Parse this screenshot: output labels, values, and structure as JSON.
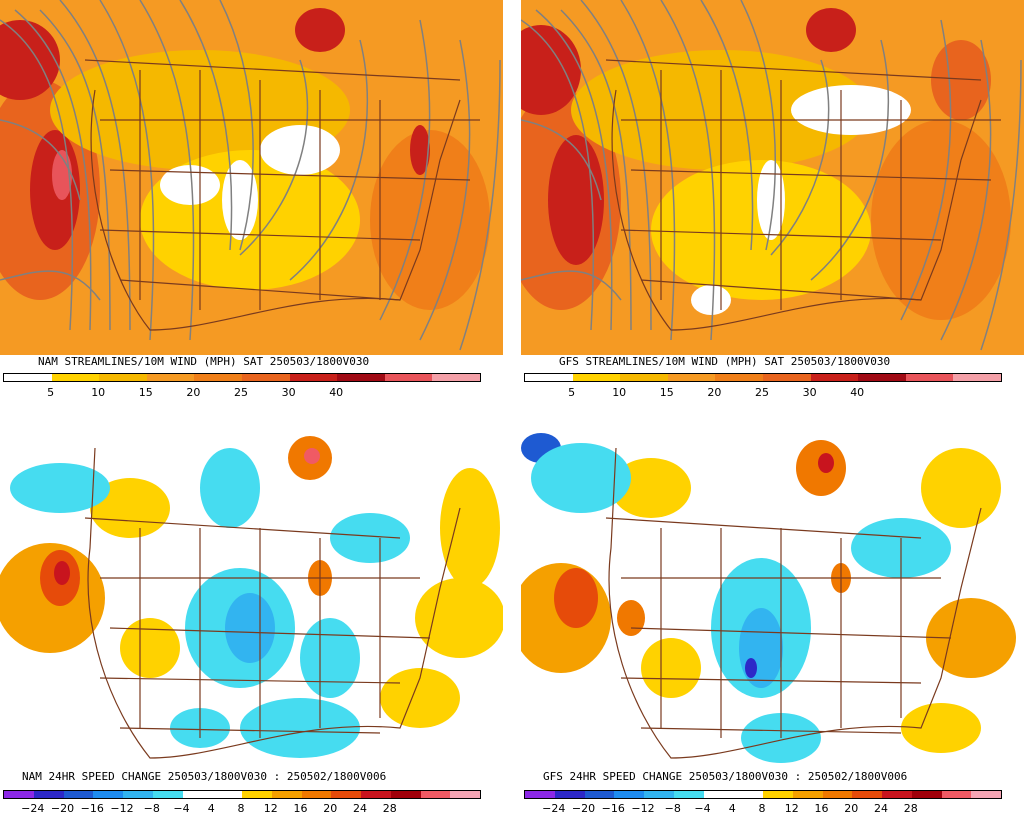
{
  "panels": [
    {
      "id": "nam_stream",
      "caption": "NAM STREAMLINES/10M WIND (MPH)  SAT 250503/1800V030",
      "palette": [
        "#ffffff",
        "#ffd200",
        "#f5b800",
        "#f59a23",
        "#f07f19",
        "#e8641e",
        "#c8201a",
        "#a00a14",
        "#e8545a",
        "#f4a0a8"
      ],
      "ticks": [
        "5",
        "10",
        "15",
        "20",
        "25",
        "30",
        "40"
      ],
      "kind": "wind"
    },
    {
      "id": "gfs_stream",
      "caption": "GFS STREAMLINES/10M WIND (MPH)  SAT 250503/1800V030",
      "palette": [
        "#ffffff",
        "#ffd200",
        "#f5b800",
        "#f59a23",
        "#f07f19",
        "#e8641e",
        "#c8201a",
        "#a00a14",
        "#e8545a",
        "#f4a0a8"
      ],
      "ticks": [
        "5",
        "10",
        "15",
        "20",
        "25",
        "30",
        "40"
      ],
      "kind": "wind"
    },
    {
      "id": "nam_change",
      "caption": "NAM 24HR SPEED CHANGE 250503/1800V030 : 250502/1800V006",
      "palette": [
        "#8c28e6",
        "#2d28c8",
        "#1e5ad2",
        "#1e8cf0",
        "#32b4f0",
        "#46dcf0",
        "#ffffff",
        "#ffffff",
        "#ffd200",
        "#f5a000",
        "#f07800",
        "#e64b0a",
        "#c8141e",
        "#a0000a",
        "#f05a64",
        "#f5a5b4"
      ],
      "ticks": [
        "−24",
        "−20",
        "−16",
        "−12",
        "−8",
        "−4",
        "4",
        "8",
        "12",
        "16",
        "20",
        "24",
        "28"
      ],
      "kind": "change"
    },
    {
      "id": "gfs_change",
      "caption": "GFS 24HR SPEED CHANGE 250503/1800V030 : 250502/1800V006",
      "palette": [
        "#8c28e6",
        "#2d28c8",
        "#1e5ad2",
        "#1e8cf0",
        "#32b4f0",
        "#46dcf0",
        "#ffffff",
        "#ffffff",
        "#ffd200",
        "#f5a000",
        "#f07800",
        "#e64b0a",
        "#c8141e",
        "#a0000a",
        "#f05a64",
        "#f5a5b4"
      ],
      "ticks": [
        "−24",
        "−20",
        "−16",
        "−12",
        "−8",
        "−4",
        "4",
        "8",
        "12",
        "16",
        "20",
        "24",
        "28"
      ],
      "kind": "change"
    }
  ]
}
